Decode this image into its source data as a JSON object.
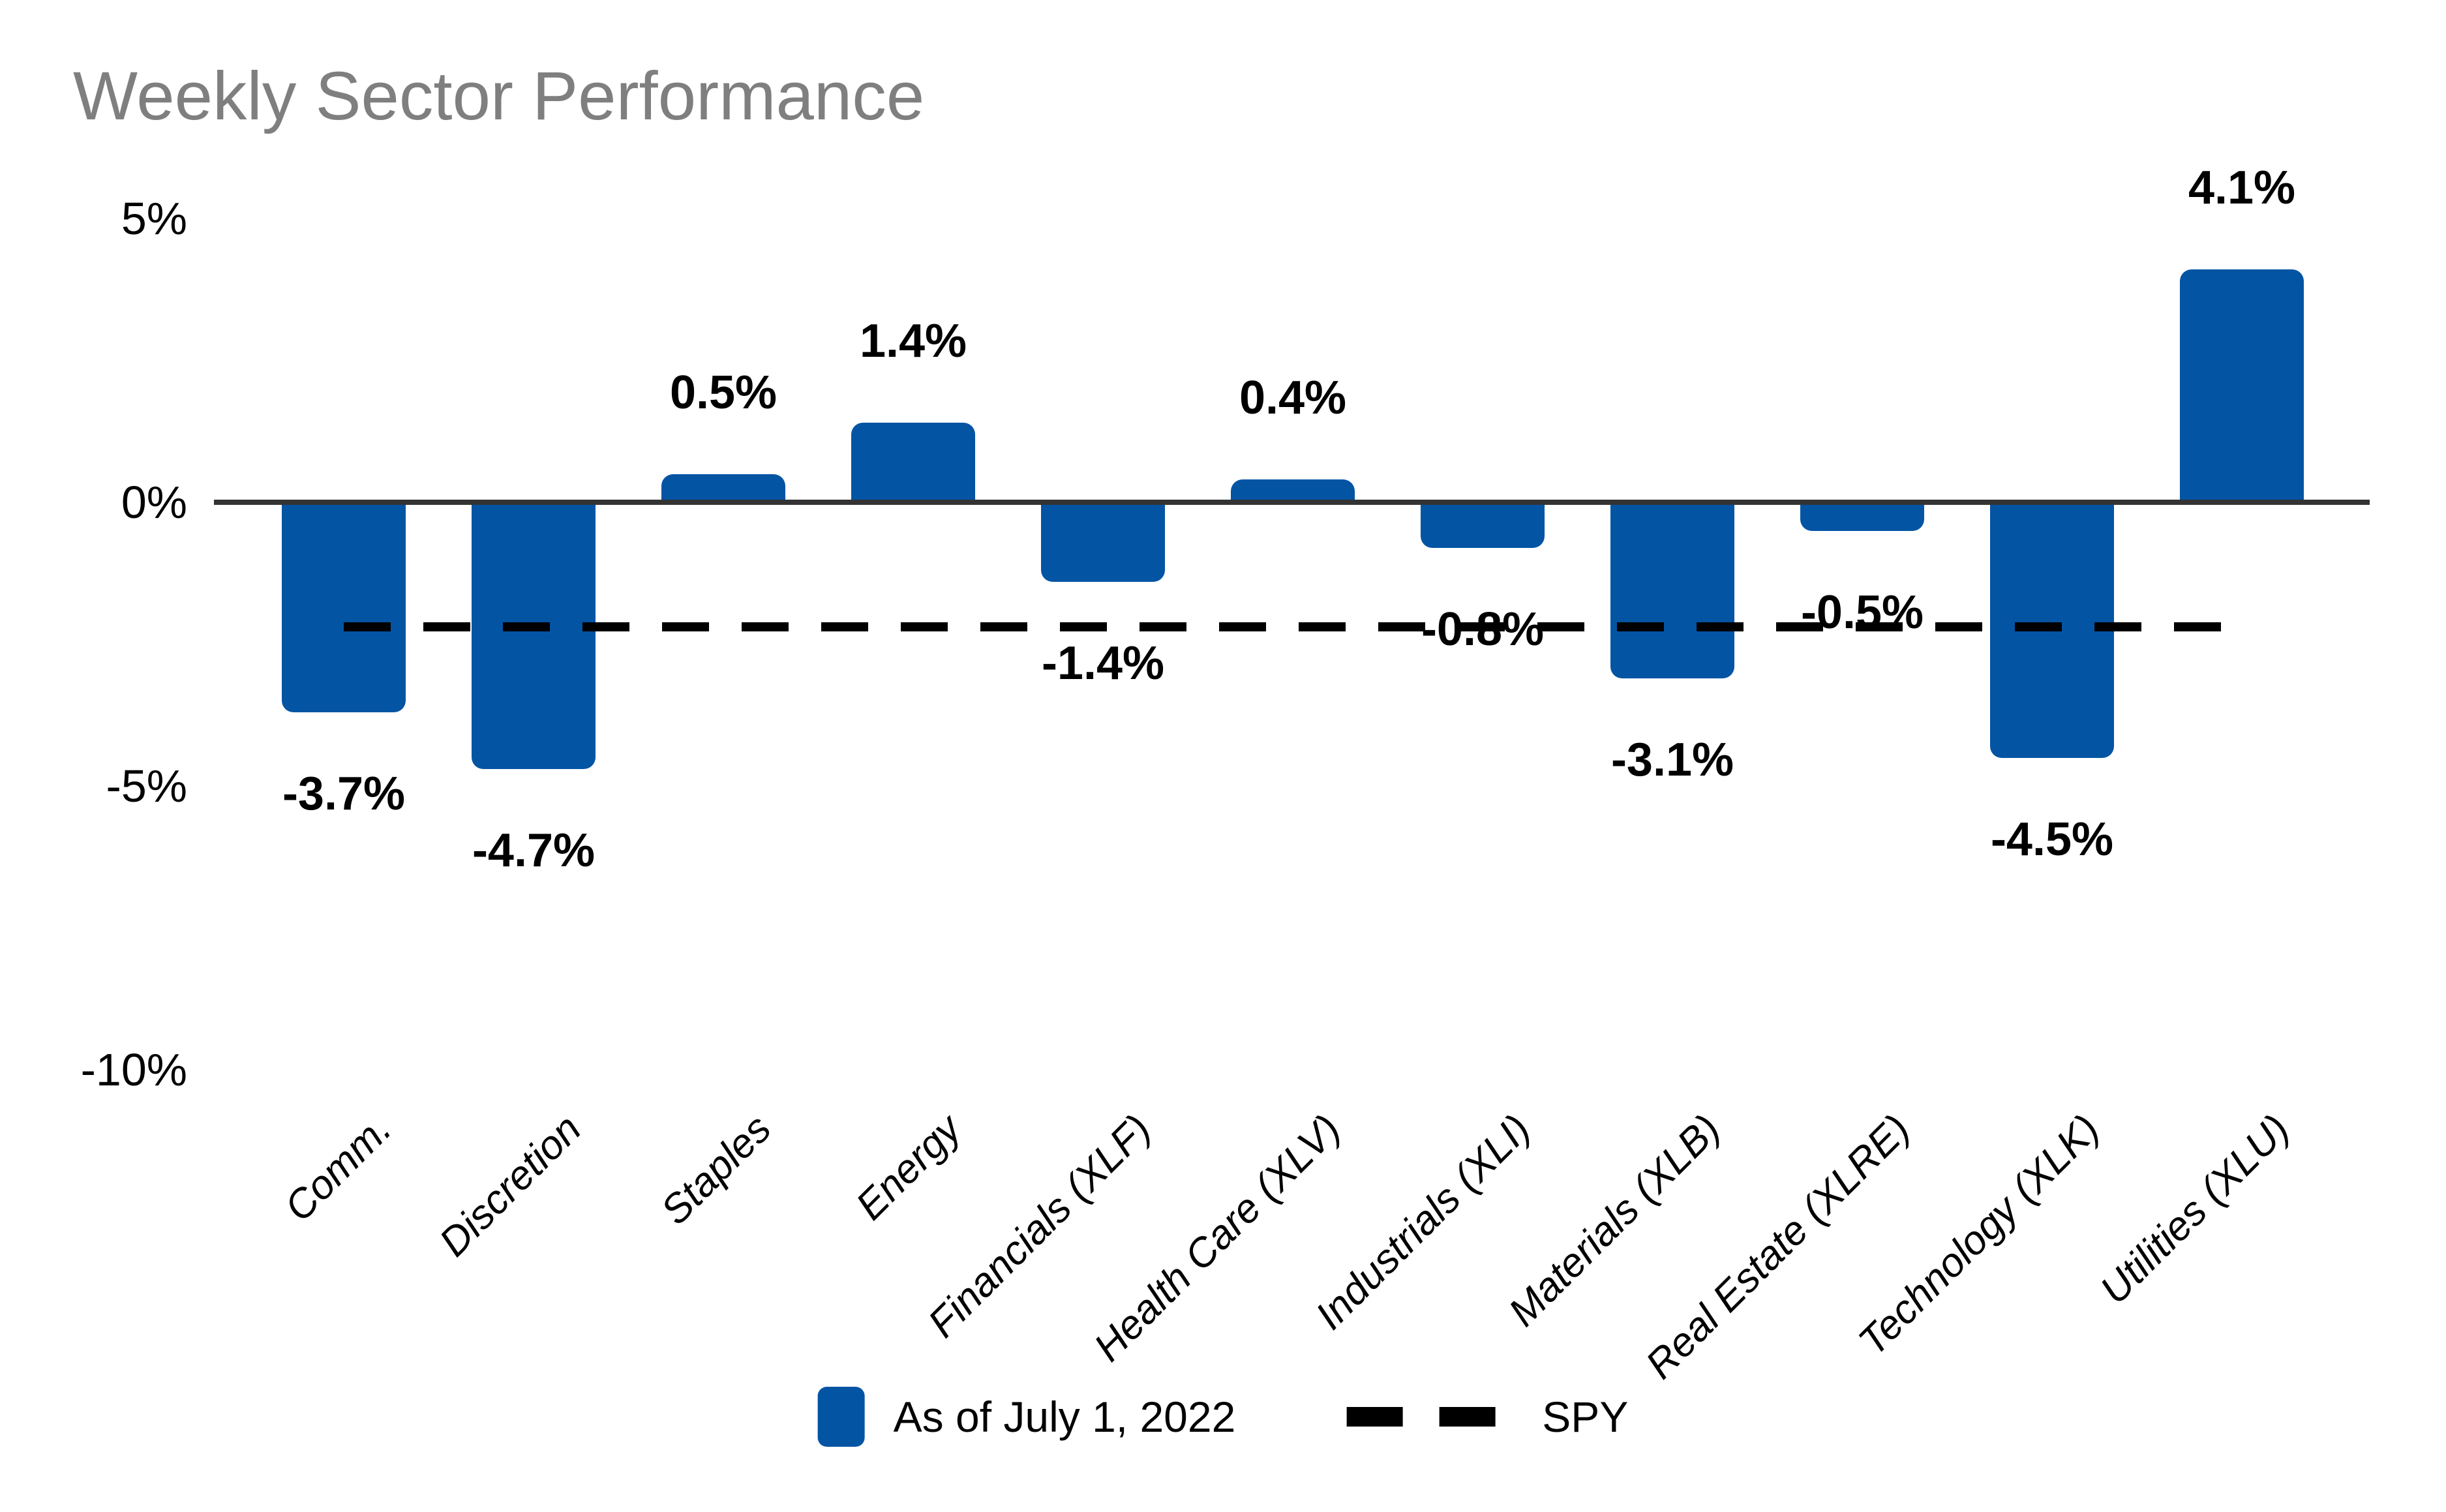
{
  "chart_data": {
    "type": "bar",
    "title": "Weekly Sector Performance",
    "categories": [
      "Comm.",
      "Discretion",
      "Staples",
      "Energy",
      "Financials (XLF)",
      "Health Care (XLV)",
      "Industrials (XLI)",
      "Materials (XLB)",
      "Real Estate (XLRE)",
      "Technology (XLK)",
      "Utilities (XLU)"
    ],
    "values": [
      -3.7,
      -4.7,
      0.5,
      1.4,
      -1.4,
      0.4,
      -0.8,
      -3.1,
      -0.5,
      -4.5,
      4.1
    ],
    "value_labels": [
      "-3.7%",
      "-4.7%",
      "0.5%",
      "1.4%",
      "-1.4%",
      "0.4%",
      "-0.8%",
      "-3.1%",
      "-0.5%",
      "-4.5%",
      "4.1%"
    ],
    "xlabel": "",
    "ylabel": "",
    "y_ticks": [
      {
        "label": "5%",
        "value": 5
      },
      {
        "label": "0%",
        "value": 0
      },
      {
        "label": "-5%",
        "value": -5
      },
      {
        "label": "-10%",
        "value": -10
      }
    ],
    "ylim": [
      -10,
      5.5
    ],
    "grid": "off",
    "spy_line": {
      "name": "SPY",
      "value": -2.2,
      "style": "dashed"
    },
    "legend": {
      "position": "bottom-center",
      "bar_label": "As of July 1, 2022",
      "spy_label": "SPY"
    },
    "colors": {
      "bar": "#0454A4",
      "axis": "#333333",
      "title": "#7F7F7F",
      "text": "#000000",
      "spy_line": "#000000",
      "background": "#FFFFFF"
    }
  }
}
